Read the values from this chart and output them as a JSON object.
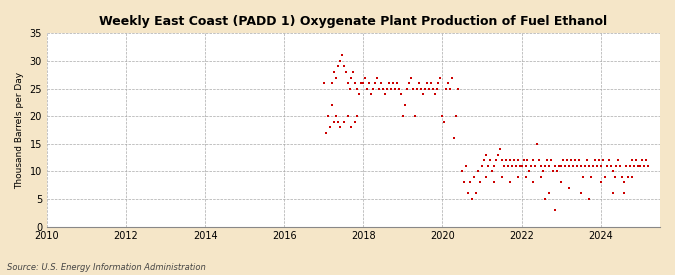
{
  "title": "Weekly East Coast (PADD 1) Oxygenate Plant Production of Fuel Ethanol",
  "ylabel": "Thousand Barrels per Day",
  "source": "Source: U.S. Energy Information Administration",
  "background_color": "#f5e6c8",
  "plot_bg_color": "#ffffff",
  "marker_color": "#cc0000",
  "xlim": [
    2010,
    2025.5
  ],
  "ylim": [
    0,
    35
  ],
  "yticks": [
    0,
    5,
    10,
    15,
    20,
    25,
    30,
    35
  ],
  "xticks": [
    2010,
    2012,
    2014,
    2016,
    2018,
    2020,
    2022,
    2024
  ],
  "data_2017_2020": {
    "x": [
      2017.2,
      2017.25,
      2017.3,
      2017.35,
      2017.4,
      2017.45,
      2017.5,
      2017.55,
      2017.6,
      2017.65,
      2017.7,
      2017.75,
      2017.8,
      2017.85,
      2017.9,
      2017.95,
      2018.0,
      2018.05,
      2018.1,
      2018.15,
      2018.2,
      2018.25,
      2018.3,
      2018.35,
      2018.4,
      2018.45,
      2018.5,
      2018.55,
      2018.6,
      2018.65,
      2018.7,
      2018.75,
      2018.8,
      2018.85,
      2018.9,
      2018.95,
      2019.0,
      2019.05,
      2019.1,
      2019.15,
      2019.2,
      2019.25,
      2019.3,
      2019.35,
      2019.4,
      2019.45,
      2019.5,
      2019.55,
      2019.6,
      2019.65,
      2019.7,
      2019.75,
      2019.8,
      2019.85,
      2019.9,
      2019.95,
      2020.0,
      2020.05,
      2020.1,
      2020.15,
      2020.2,
      2020.25,
      2020.3,
      2020.35,
      2020.4
    ],
    "y": [
      26,
      28,
      27,
      29,
      30,
      31,
      29,
      28,
      26,
      25,
      27,
      28,
      26,
      25,
      24,
      26,
      26,
      27,
      25,
      26,
      24,
      25,
      26,
      27,
      25,
      26,
      25,
      24,
      25,
      26,
      25,
      26,
      25,
      26,
      25,
      24,
      20,
      22,
      25,
      26,
      27,
      25,
      20,
      25,
      26,
      25,
      24,
      25,
      26,
      25,
      26,
      25,
      24,
      25,
      26,
      27,
      20,
      19,
      25,
      26,
      25,
      27,
      16,
      20,
      25
    ]
  },
  "data_2017_low": {
    "x": [
      2017.0,
      2017.05,
      2017.1,
      2017.15,
      2017.2,
      2017.25,
      2017.3,
      2017.35,
      2017.4,
      2017.5,
      2017.6,
      2017.7,
      2017.8,
      2017.85
    ],
    "y": [
      26,
      17,
      20,
      18,
      22,
      19,
      20,
      19,
      18,
      19,
      20,
      18,
      19,
      20
    ]
  },
  "data_2020_2025": {
    "x": [
      2020.5,
      2020.55,
      2020.6,
      2020.65,
      2020.7,
      2020.75,
      2020.8,
      2020.85,
      2020.9,
      2020.95,
      2021.0,
      2021.05,
      2021.1,
      2021.15,
      2021.2,
      2021.25,
      2021.3,
      2021.35,
      2021.4,
      2021.45,
      2021.5,
      2021.55,
      2021.6,
      2021.65,
      2021.7,
      2021.75,
      2021.8,
      2021.85,
      2021.9,
      2021.95,
      2022.0,
      2022.05,
      2022.1,
      2022.15,
      2022.2,
      2022.25,
      2022.3,
      2022.35,
      2022.4,
      2022.45,
      2022.5,
      2022.55,
      2022.6,
      2022.65,
      2022.7,
      2022.75,
      2022.8,
      2022.85,
      2022.9,
      2022.95,
      2023.0,
      2023.05,
      2023.1,
      2023.15,
      2023.2,
      2023.25,
      2023.3,
      2023.35,
      2023.4,
      2023.45,
      2023.5,
      2023.55,
      2023.6,
      2023.65,
      2023.7,
      2023.75,
      2023.8,
      2023.85,
      2023.9,
      2023.95,
      2024.0,
      2024.05,
      2024.1,
      2024.15,
      2024.2,
      2024.25,
      2024.3,
      2024.35,
      2024.4,
      2024.45,
      2024.5,
      2024.55,
      2024.6,
      2024.65,
      2024.7,
      2024.75,
      2024.8,
      2024.85,
      2024.9,
      2024.95,
      2025.0,
      2025.05,
      2025.1,
      2025.15,
      2025.2
    ],
    "y": [
      10,
      8,
      11,
      6,
      8,
      5,
      9,
      6,
      10,
      8,
      11,
      12,
      13,
      11,
      12,
      10,
      11,
      12,
      13,
      14,
      12,
      11,
      12,
      11,
      12,
      11,
      12,
      11,
      12,
      11,
      11,
      12,
      11,
      12,
      10,
      11,
      12,
      11,
      15,
      12,
      11,
      10,
      11,
      12,
      11,
      12,
      10,
      11,
      10,
      11,
      11,
      12,
      11,
      12,
      11,
      12,
      11,
      12,
      11,
      12,
      11,
      9,
      11,
      12,
      11,
      9,
      11,
      12,
      11,
      12,
      11,
      12,
      9,
      11,
      12,
      11,
      10,
      9,
      11,
      12,
      11,
      9,
      8,
      11,
      9,
      11,
      12,
      11,
      12,
      11,
      11,
      12,
      11,
      12,
      11
    ]
  },
  "data_2021_low": {
    "x": [
      2021.1,
      2021.3,
      2021.5,
      2021.7,
      2021.9,
      2022.1,
      2022.3,
      2022.5,
      2022.6,
      2022.7,
      2022.85,
      2023.0,
      2023.2,
      2023.5,
      2023.7,
      2024.0,
      2024.3,
      2024.6,
      2024.8
    ],
    "y": [
      9,
      8,
      9,
      8,
      9,
      9,
      8,
      9,
      5,
      6,
      3,
      8,
      7,
      6,
      5,
      8,
      6,
      6,
      9
    ]
  }
}
